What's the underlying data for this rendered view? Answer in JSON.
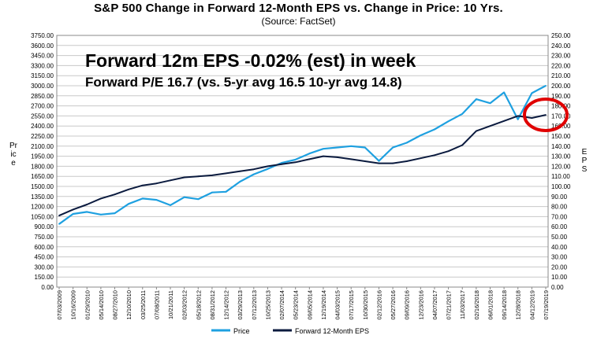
{
  "chart_data": {
    "type": "line",
    "title": "S&P 500 Change in Forward 12-Month EPS vs. Change in Price: 10 Yrs.",
    "subtitle": "(Source: FactSet)",
    "annotations": [
      "Forward 12m EPS -0.02% (est) in week",
      "Forward P/E 16.7 (vs. 5-yr avg 16.5 10-yr avg 14.8)"
    ],
    "ylabel_left": "Price",
    "ylabel_right": "EPS",
    "ylim_left": [
      0,
      3750
    ],
    "ylim_right": [
      0,
      250
    ],
    "left_ticks": [
      "0.00",
      "150.00",
      "300.00",
      "450.00",
      "600.00",
      "750.00",
      "900.00",
      "1050.00",
      "1200.00",
      "1350.00",
      "1500.00",
      "1650.00",
      "1800.00",
      "1950.00",
      "2100.00",
      "2250.00",
      "2400.00",
      "2550.00",
      "2700.00",
      "2850.00",
      "3000.00",
      "3150.00",
      "3300.00",
      "3450.00",
      "3600.00",
      "3750.00"
    ],
    "right_ticks": [
      "0.00",
      "10.00",
      "20.00",
      "30.00",
      "40.00",
      "50.00",
      "60.00",
      "70.00",
      "80.00",
      "90.00",
      "100.00",
      "110.00",
      "120.00",
      "130.00",
      "140.00",
      "150.00",
      "160.00",
      "170.00",
      "180.00",
      "190.00",
      "200.00",
      "210.00",
      "220.00",
      "230.00",
      "240.00",
      "250.00"
    ],
    "x_ticks": [
      "07/03/2009",
      "10/16/2009",
      "01/29/2010",
      "05/14/2010",
      "08/27/2010",
      "12/10/2010",
      "03/25/2011",
      "07/08/2011",
      "10/21/2011",
      "02/03/2012",
      "05/18/2012",
      "08/31/2012",
      "12/14/2012",
      "03/29/2013",
      "07/12/2013",
      "10/25/2013",
      "02/07/2014",
      "05/23/2014",
      "09/05/2014",
      "12/19/2014",
      "04/03/2015",
      "07/17/2015",
      "10/30/2015",
      "02/12/2016",
      "05/27/2016",
      "09/09/2016",
      "12/23/2016",
      "04/07/2017",
      "07/21/2017",
      "11/03/2017",
      "02/16/2018",
      "06/01/2018",
      "09/14/2018",
      "12/28/2018",
      "04/12/2019",
      "07/19/2019"
    ],
    "grid": true,
    "legend_position": "bottom",
    "series": [
      {
        "name": "Price",
        "axis": "left",
        "color": "#1ea0e0",
        "x": [
          0,
          1,
          2,
          3,
          4,
          5,
          6,
          7,
          8,
          9,
          10,
          11,
          12,
          13,
          14,
          15,
          16,
          17,
          18,
          19,
          20,
          21,
          22,
          23,
          24,
          25,
          26,
          27,
          28,
          29,
          30,
          31,
          32,
          33,
          34,
          35
        ],
        "values": [
          940,
          1090,
          1120,
          1080,
          1100,
          1240,
          1320,
          1300,
          1220,
          1340,
          1310,
          1410,
          1420,
          1570,
          1680,
          1760,
          1850,
          1900,
          1990,
          2060,
          2080,
          2100,
          2080,
          1880,
          2080,
          2150,
          2260,
          2350,
          2470,
          2580,
          2800,
          2740,
          2900,
          2500,
          2890,
          3000
        ]
      },
      {
        "name": "Forward 12-Month EPS",
        "axis": "right",
        "color": "#0a1a3e",
        "x": [
          0,
          1,
          2,
          3,
          4,
          5,
          6,
          7,
          8,
          9,
          10,
          11,
          12,
          13,
          14,
          15,
          16,
          17,
          18,
          19,
          20,
          21,
          22,
          23,
          24,
          25,
          26,
          27,
          28,
          29,
          30,
          31,
          32,
          33,
          34,
          35
        ],
        "values": [
          71,
          77,
          82,
          88,
          92,
          97,
          101,
          103,
          106,
          109,
          110,
          111,
          113,
          115,
          117,
          120,
          122,
          124,
          127,
          130,
          129,
          127,
          125,
          123,
          123,
          125,
          128,
          131,
          135,
          141,
          155,
          160,
          165,
          170,
          168,
          171
        ]
      }
    ]
  },
  "legend": {
    "price_label": "Price",
    "eps_label": "Forward 12-Month EPS"
  },
  "highlight_color": "#e00000"
}
